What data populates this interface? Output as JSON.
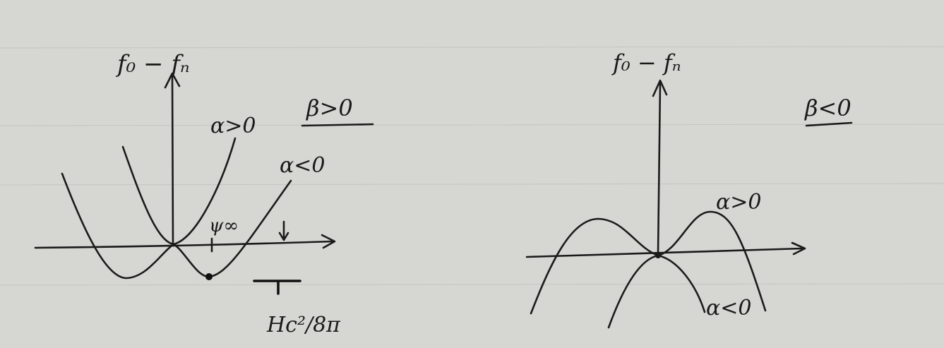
{
  "left_panel": {
    "y_axis_label": "f₀ − fₙ",
    "beta_condition": "β>0",
    "curve_alpha_pos_label": "α>0",
    "curve_alpha_neg_label": "α<0",
    "psi_label": "ψ∞",
    "hc_label": "Hc²/8π"
  },
  "right_panel": {
    "y_axis_label": "f₀ − fₙ",
    "beta_condition": "β<0",
    "curve_alpha_pos_label": "α>0",
    "curve_alpha_neg_label": "α<0"
  },
  "colors": {
    "paper": "#d6d6d2",
    "ink": "#1b1b1b"
  }
}
